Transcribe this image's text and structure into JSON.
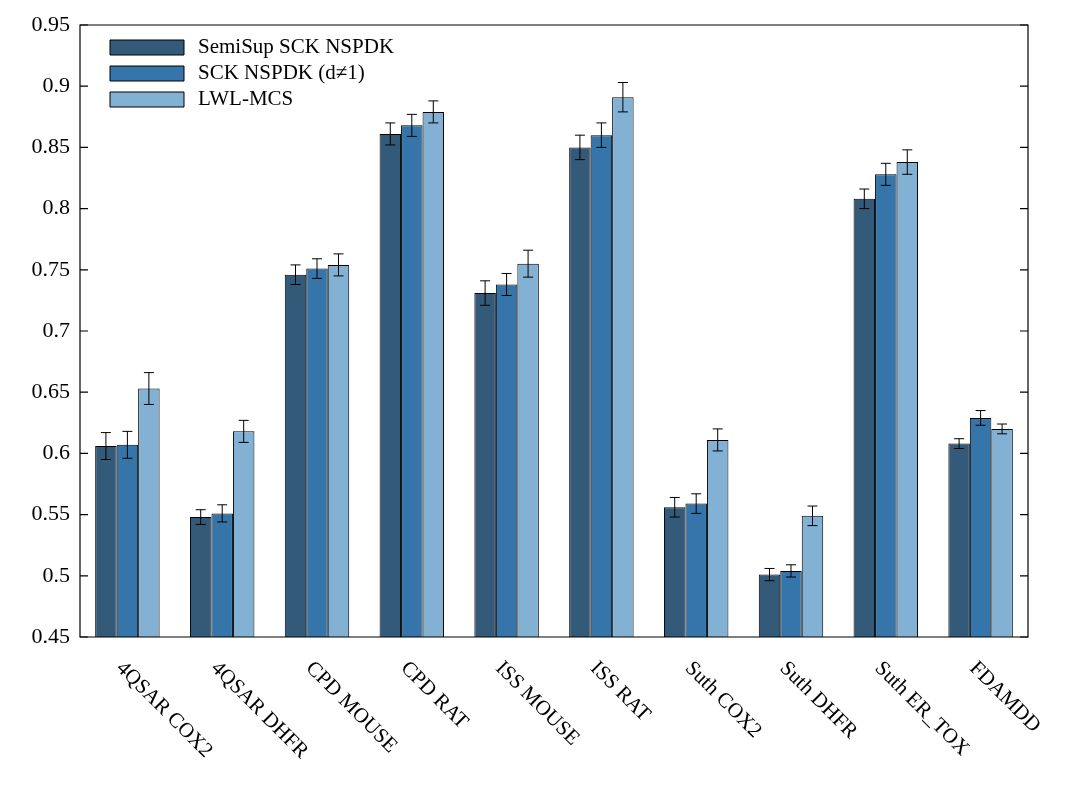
{
  "chart_data": {
    "type": "bar",
    "categories": [
      "4QSAR COX2",
      "4QSAR DHFR",
      "CPD MOUSE",
      "CPD RAT",
      "ISS MOUSE",
      "ISS RAT",
      "Suth COX2",
      "Suth DHFR",
      "Suth ER_TOX",
      "FDAMDD"
    ],
    "series": [
      {
        "name": "SemiSup SCK NSPDK",
        "color": "#345a7a",
        "values": [
          0.606,
          0.548,
          0.746,
          0.861,
          0.731,
          0.85,
          0.556,
          0.501,
          0.808,
          0.608
        ],
        "errors": [
          0.011,
          0.006,
          0.008,
          0.009,
          0.01,
          0.01,
          0.008,
          0.005,
          0.008,
          0.004
        ]
      },
      {
        "name": "SCK NSPDK (d≠1)",
        "color": "#3575aa",
        "values": [
          0.607,
          0.551,
          0.751,
          0.868,
          0.738,
          0.86,
          0.559,
          0.504,
          0.828,
          0.629
        ],
        "errors": [
          0.011,
          0.007,
          0.008,
          0.009,
          0.009,
          0.01,
          0.008,
          0.005,
          0.009,
          0.006
        ]
      },
      {
        "name": "LWL-MCS",
        "color": "#82b1d4",
        "values": [
          0.653,
          0.618,
          0.754,
          0.879,
          0.755,
          0.891,
          0.611,
          0.549,
          0.838,
          0.62
        ],
        "errors": [
          0.013,
          0.009,
          0.009,
          0.009,
          0.011,
          0.012,
          0.009,
          0.008,
          0.01,
          0.004
        ]
      }
    ],
    "ylim": [
      0.45,
      0.95
    ],
    "yticks": [
      0.45,
      0.5,
      0.55,
      0.6,
      0.65,
      0.7,
      0.75,
      0.8,
      0.85,
      0.9,
      0.95
    ],
    "legend": "top left"
  }
}
